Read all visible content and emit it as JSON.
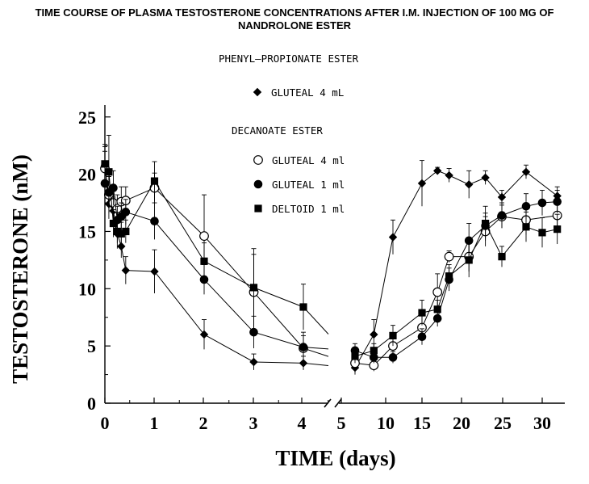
{
  "chart_data": {
    "type": "line",
    "title_lines": [
      "TIME COURSE OF PLASMA TESTOSTERONE CONCENTRATIONS AFTER I.M. INJECTION OF 100 MG OF",
      "NANDROLONE ESTER"
    ],
    "xlabel": "TIME (days)",
    "ylabel": "TESTOSTERONE (nM)",
    "ylim": [
      0,
      25
    ],
    "y_ticks": [
      "0",
      "5",
      "10",
      "15",
      "20",
      "25"
    ],
    "x_ticks_left": [
      "0",
      "1",
      "2",
      "3",
      "4",
      "5"
    ],
    "x_ticks_right": [
      "10",
      "15",
      "20",
      "25",
      "30"
    ],
    "x_axis_break_between": [
      5,
      6
    ],
    "legend_headers": [
      "PHENYL–PROPIONATE ESTER",
      "DECANOATE ESTER"
    ],
    "series": [
      {
        "name": "GLUTEAL 4 mL",
        "group": "PHENYL–PROPIONATE ESTER",
        "marker": "diamond",
        "x": [
          0,
          0.08,
          0.17,
          0.25,
          0.33,
          0.42,
          1,
          2,
          3,
          4,
          7,
          9,
          11,
          14,
          16,
          18,
          21,
          23,
          25,
          28,
          32
        ],
        "y": [
          20.8,
          17.4,
          16.8,
          14.8,
          13.7,
          11.6,
          11.5,
          6.0,
          3.6,
          3.5,
          3.1,
          6.0,
          14.5,
          19.2,
          20.3,
          19.9,
          19.1,
          19.7,
          18.0,
          20.2,
          18.1
        ],
        "y_err": [
          1.8,
          1.3,
          1.2,
          1.3,
          1.0,
          1.2,
          1.9,
          1.3,
          0.7,
          0.6,
          0.6,
          1.3,
          1.5,
          2.0,
          0.3,
          0.6,
          1.2,
          0.6,
          0.6,
          0.6,
          0.8
        ]
      },
      {
        "name": "GLUTEAL 4 ml",
        "group": "DECANOATE ESTER",
        "marker": "open-circle",
        "x": [
          0,
          0.08,
          0.17,
          0.25,
          0.33,
          0.42,
          1,
          2,
          3,
          4,
          7,
          9,
          11,
          14,
          16,
          18,
          21,
          23,
          25,
          28,
          32
        ],
        "y": [
          20.5,
          18.2,
          17.5,
          17.0,
          17.6,
          17.7,
          18.8,
          14.6,
          9.7,
          4.8,
          3.5,
          3.3,
          5.0,
          6.6,
          9.7,
          12.8,
          12.8,
          15.0,
          16.3,
          16.0,
          16.4
        ],
        "y_err": [
          1.5,
          1.6,
          1.4,
          1.2,
          1.3,
          1.2,
          1.3,
          3.6,
          3.3,
          1.4,
          0.8,
          0.5,
          0.7,
          1.1,
          1.6,
          0.5,
          1.3,
          1.3,
          1.0,
          1.3,
          1.0
        ]
      },
      {
        "name": "GLUTEAL 1 ml",
        "group": "DECANOATE ESTER",
        "marker": "filled-circle",
        "x": [
          0,
          0.08,
          0.17,
          0.25,
          0.33,
          0.42,
          1,
          2,
          3,
          4,
          7,
          9,
          11,
          14,
          16,
          18,
          21,
          23,
          25,
          28,
          30,
          32
        ],
        "y": [
          19.2,
          18.4,
          18.8,
          16.0,
          16.3,
          16.7,
          15.9,
          10.8,
          6.2,
          4.9,
          4.6,
          4.0,
          4.0,
          5.8,
          7.4,
          10.8,
          14.2,
          15.5,
          16.4,
          17.2,
          17.5,
          17.6
        ],
        "y_err": [
          1.6,
          1.4,
          1.5,
          1.2,
          1.2,
          1.1,
          1.6,
          1.3,
          1.4,
          1.0,
          0.6,
          0.5,
          0.5,
          0.7,
          0.7,
          1.0,
          1.5,
          1.1,
          1.1,
          1.1,
          1.1,
          1.0
        ]
      },
      {
        "name": "DELTOID 1 ml",
        "group": "DECANOATE ESTER",
        "marker": "filled-square",
        "x": [
          0,
          0.08,
          0.17,
          0.25,
          0.33,
          0.42,
          1,
          2,
          3,
          4,
          7,
          9,
          11,
          14,
          16,
          18,
          21,
          23,
          25,
          28,
          30,
          32
        ],
        "y": [
          20.9,
          20.2,
          15.7,
          15.0,
          14.8,
          15.0,
          19.4,
          12.4,
          10.1,
          8.4,
          4.1,
          4.6,
          5.9,
          7.9,
          8.2,
          11.1,
          12.5,
          15.7,
          12.8,
          15.4,
          14.9,
          15.2
        ],
        "y_err": [
          1.5,
          3.2,
          1.2,
          1.0,
          1.0,
          1.0,
          1.7,
          1.6,
          3.4,
          2.0,
          0.6,
          0.6,
          0.9,
          1.1,
          0.8,
          1.0,
          1.5,
          1.5,
          0.9,
          1.3,
          1.3,
          1.3
        ]
      }
    ]
  }
}
